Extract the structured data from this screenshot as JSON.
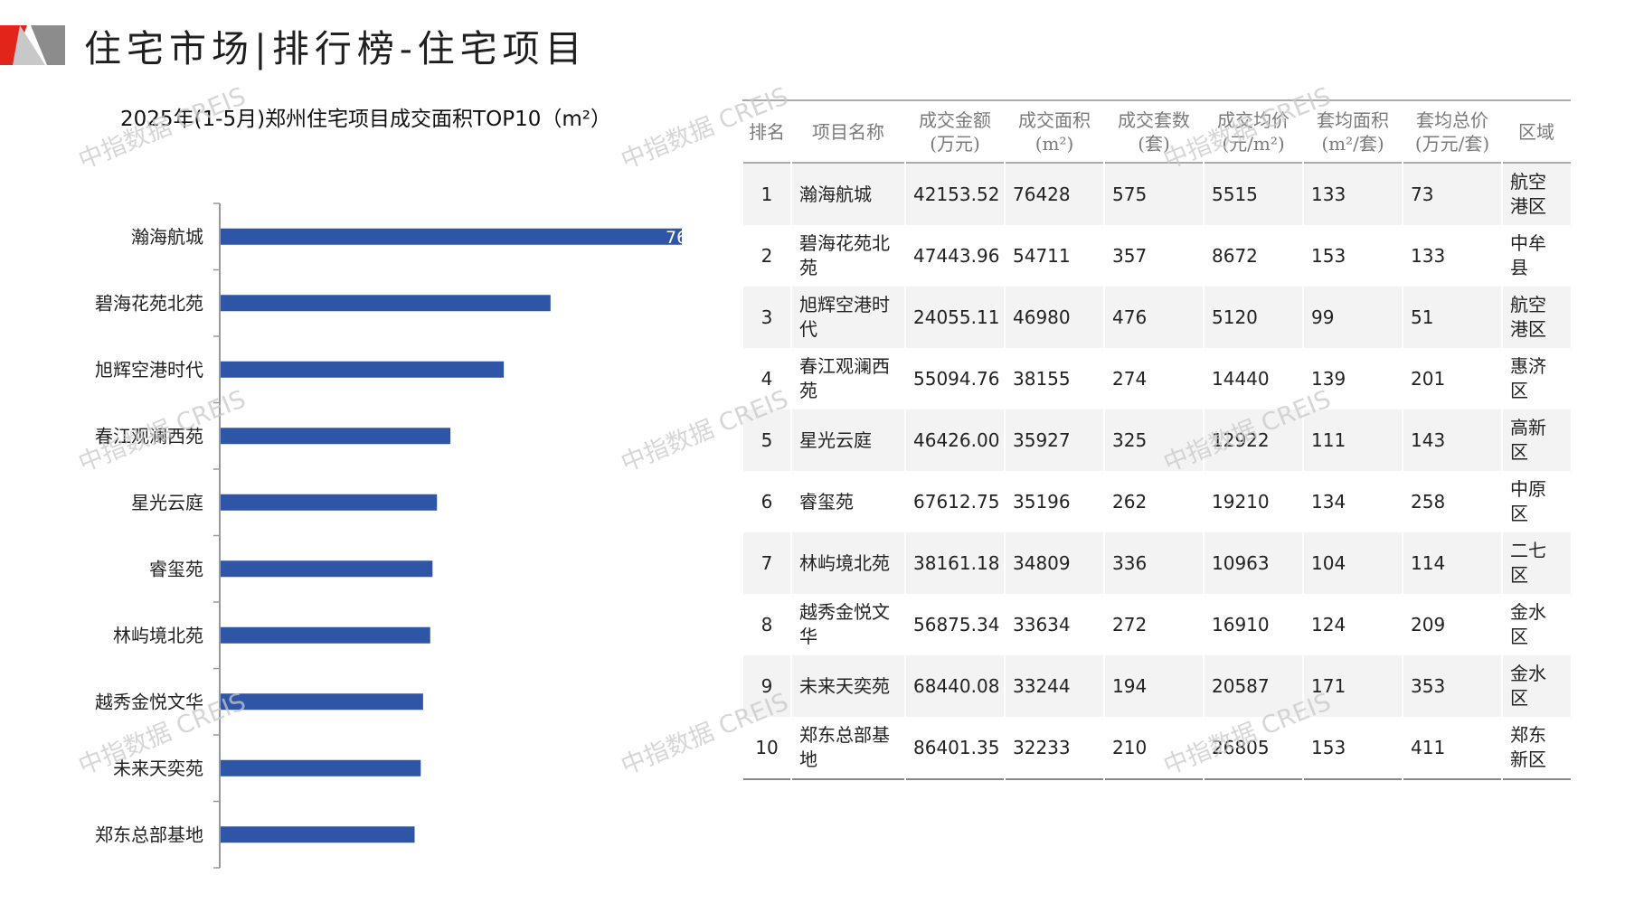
{
  "header": {
    "title": "住宅市场|排行榜-住宅项目",
    "logo": "red-gray-triangle-logo"
  },
  "chart_data": {
    "type": "bar",
    "orientation": "horizontal",
    "title": "2025年(1-5月)郑州住宅项目成交面积TOP10（m²）",
    "categories": [
      "瀚海航城",
      "碧海花苑北苑",
      "旭辉空港时代",
      "春江观澜西苑",
      "星光云庭",
      "睿玺苑",
      "林屿境北苑",
      "越秀金悦文华",
      "未来天奕苑",
      "郑东总部基地"
    ],
    "values": [
      76428,
      54711,
      46980,
      38155,
      35927,
      35196,
      34809,
      33634,
      33244,
      32233
    ],
    "visible_data_label": "76",
    "bar_color": "#2e55a6",
    "xlim": [
      0,
      76428
    ],
    "grid": false,
    "legend": "none"
  },
  "table": {
    "headers": [
      [
        "排名"
      ],
      [
        "项目名称"
      ],
      [
        "成交金额",
        "(万元)"
      ],
      [
        "成交面积",
        "(m²)"
      ],
      [
        "成交套数",
        "(套)"
      ],
      [
        "成交均价",
        "(元/m²)"
      ],
      [
        "套均面积",
        "(m²/套)"
      ],
      [
        "套均总价",
        "(万元/套)"
      ],
      [
        "区域"
      ]
    ],
    "rows": [
      [
        "1",
        "瀚海航城",
        "42153.52",
        "76428",
        "575",
        "5515",
        "133",
        "73",
        "航空港区"
      ],
      [
        "2",
        "碧海花苑北苑",
        "47443.96",
        "54711",
        "357",
        "8672",
        "153",
        "133",
        "中牟县"
      ],
      [
        "3",
        "旭辉空港时代",
        "24055.11",
        "46980",
        "476",
        "5120",
        "99",
        "51",
        "航空港区"
      ],
      [
        "4",
        "春江观澜西苑",
        "55094.76",
        "38155",
        "274",
        "14440",
        "139",
        "201",
        "惠济区"
      ],
      [
        "5",
        "星光云庭",
        "46426.00",
        "35927",
        "325",
        "12922",
        "111",
        "143",
        "高新区"
      ],
      [
        "6",
        "睿玺苑",
        "67612.75",
        "35196",
        "262",
        "19210",
        "134",
        "258",
        "中原区"
      ],
      [
        "7",
        "林屿境北苑",
        "38161.18",
        "34809",
        "336",
        "10963",
        "104",
        "114",
        "二七区"
      ],
      [
        "8",
        "越秀金悦文华",
        "56875.34",
        "33634",
        "272",
        "16910",
        "124",
        "209",
        "金水区"
      ],
      [
        "9",
        "未来天奕苑",
        "68440.08",
        "33244",
        "194",
        "20587",
        "171",
        "353",
        "金水区"
      ],
      [
        "10",
        "郑东总部基地",
        "86401.35",
        "32233",
        "210",
        "26805",
        "153",
        "411",
        "郑东新区"
      ]
    ]
  },
  "watermark": "中指数据 CREIS"
}
